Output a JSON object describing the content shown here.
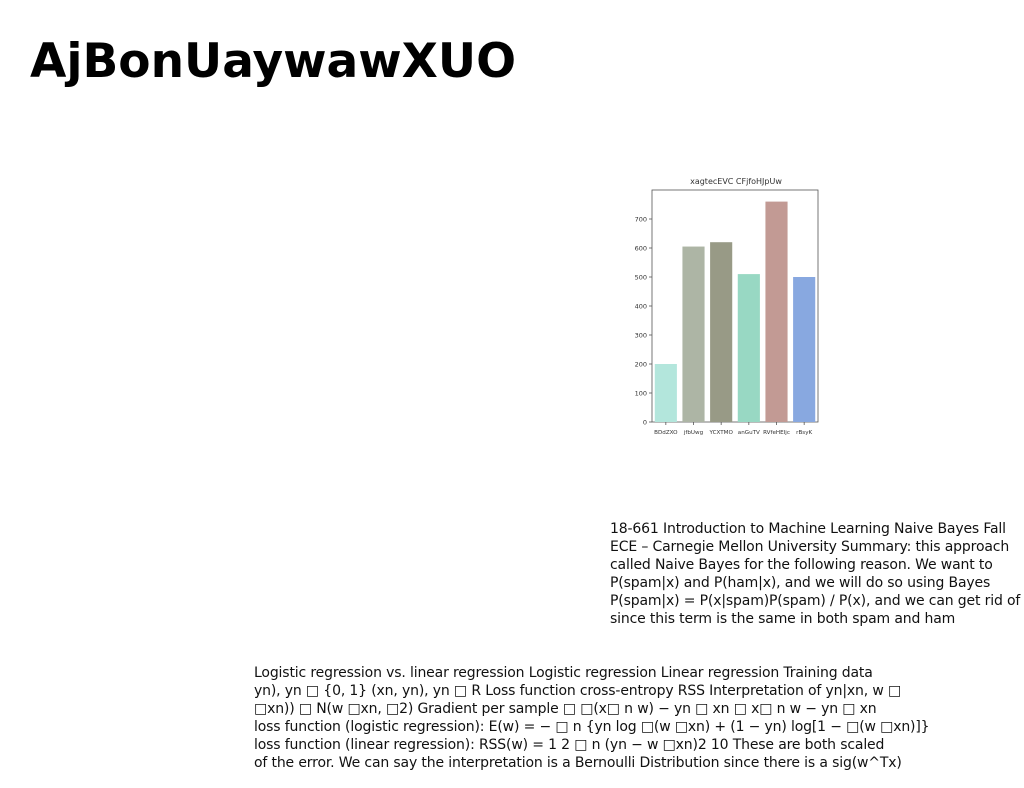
{
  "page": {
    "title": "AjBonUaywawXUO"
  },
  "chart_data": {
    "type": "bar",
    "title": "xagtecEVC CFjfoHJpUw",
    "categories": [
      "BDdZXO",
      "jfbUwg",
      "YCXTMO",
      "anGuTV",
      "RVfeHEIjc",
      "rBsyK"
    ],
    "values": [
      200,
      605,
      620,
      510,
      760,
      500
    ],
    "colors": [
      "#b3e6dc",
      "#adb5a5",
      "#989a86",
      "#98d8c3",
      "#c29a94",
      "#88a8e0"
    ],
    "ylim": [
      0,
      800
    ],
    "yticks": [
      0,
      100,
      200,
      300,
      400,
      500,
      600,
      700
    ],
    "xlabel": "",
    "ylabel": "",
    "grid": false
  },
  "text_blocks": {
    "naive_bayes": {
      "lines": [
        "18-661 Introduction to Machine Learning Naive Bayes Fall",
        "ECE – Carnegie Mellon University Summary: this approach",
        "called Naive Bayes for the following reason. We want to",
        "P(spam|x) and P(ham|x), and we will do so using Bayes",
        "P(spam|x) = P(x|spam)P(spam) / P(x), and we can get rid of",
        "since this term is the same in both spam and ham"
      ]
    },
    "logistic_regression": {
      "lines": [
        "Logistic regression vs. linear regression Logistic regression Linear regression Training data",
        "yn), yn □ {0, 1} (xn, yn), yn □ R Loss function cross-entropy RSS Interpretation of yn|xn, w □",
        "□xn)) □ N(w □xn, □2) Gradient per sample □ □(x□ n w) − yn □ xn □ x□ n w − yn □ xn",
        "loss function (logistic regression): E(w) = − □ n {yn log □(w □xn) + (1 − yn) log[1 − □(w □xn)]}",
        "loss function (linear regression): RSS(w) = 1 2 □ n (yn − w □xn)2 10 These are both scaled",
        "of the error. We can say the interpretation is a Bernoulli Distribution since there is a sig(w^Tx)"
      ]
    }
  }
}
